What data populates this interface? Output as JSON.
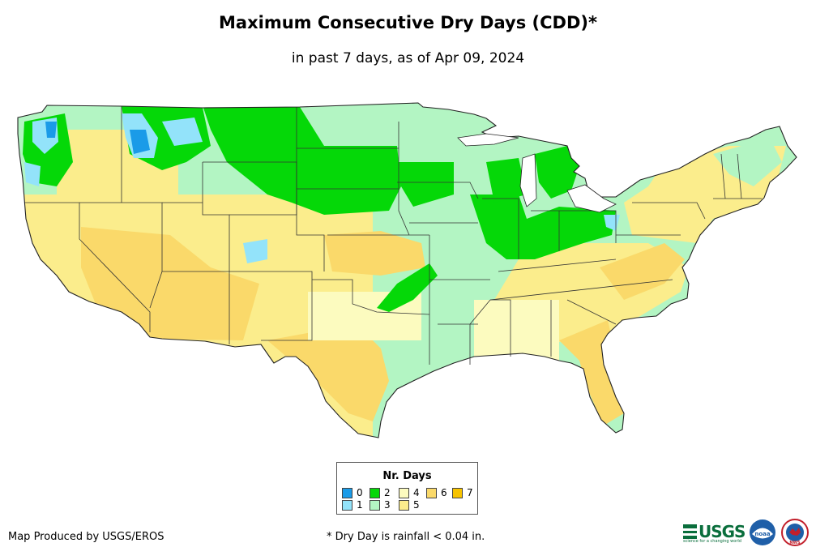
{
  "title": "Maximum Consecutive Dry Days (CDD)*",
  "subtitle": "in past 7 days, as of Apr 09, 2024",
  "legend": {
    "title": "Nr. Days",
    "items": [
      {
        "label": "0",
        "color": "#1a9be8"
      },
      {
        "label": "1",
        "color": "#93e3fa"
      },
      {
        "label": "2",
        "color": "#05d808"
      },
      {
        "label": "3",
        "color": "#b3f5c3"
      },
      {
        "label": "4",
        "color": "#fcfbbf"
      },
      {
        "label": "5",
        "color": "#fbed8c"
      },
      {
        "label": "6",
        "color": "#fad96a"
      },
      {
        "label": "7",
        "color": "#f7c300"
      }
    ]
  },
  "footer": {
    "producer": "Map Produced by USGS/EROS",
    "footnote": "* Dry Day is rainfall < 0.04 in."
  },
  "logos": {
    "usgs": {
      "text": "USGS",
      "tagline": "science for a changing world"
    },
    "noaa": {
      "text": "noaa"
    },
    "nws": {
      "text": "NWS"
    }
  }
}
